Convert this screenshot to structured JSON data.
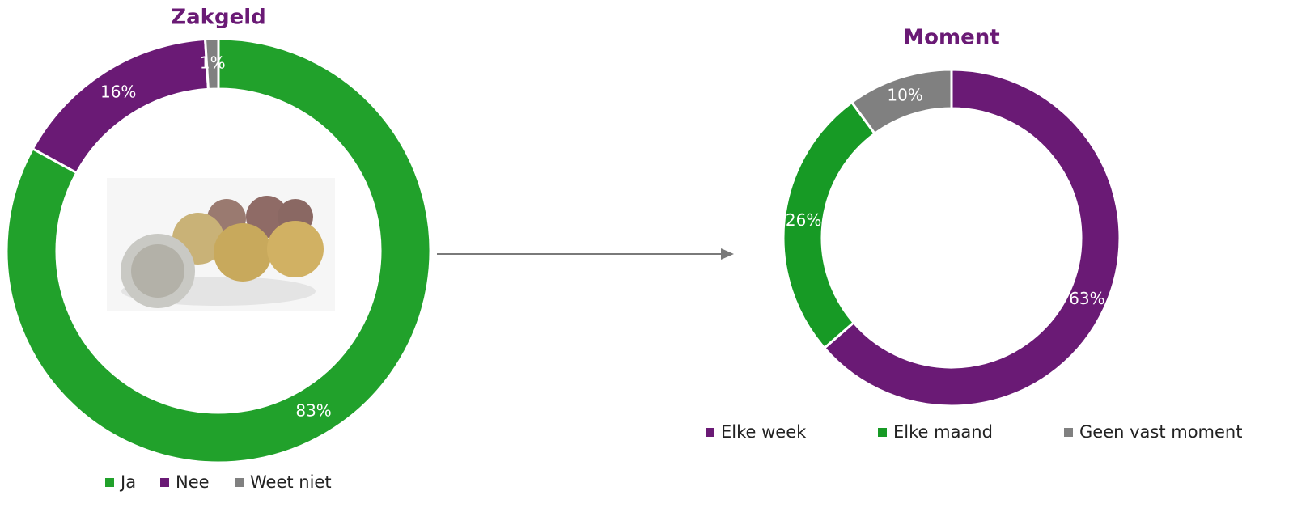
{
  "chart_data": [
    {
      "type": "donut",
      "title": "Zakgeld",
      "categories": [
        "Ja",
        "Nee",
        "Weet niet"
      ],
      "values": [
        83,
        16,
        1
      ],
      "value_labels": [
        "83%",
        "16%",
        "1%"
      ],
      "colors": [
        "#21a12b",
        "#6a1a75",
        "#808080"
      ],
      "legend": "bottom"
    },
    {
      "type": "donut",
      "title": "Moment",
      "categories": [
        "Elke week",
        "Elke maand",
        "Geen vast moment"
      ],
      "values": [
        63,
        26,
        10
      ],
      "value_labels": [
        "63%",
        "26%",
        "10%"
      ],
      "colors": [
        "#6a1a75",
        "#179a25",
        "#808080"
      ],
      "legend": "bottom"
    }
  ]
}
